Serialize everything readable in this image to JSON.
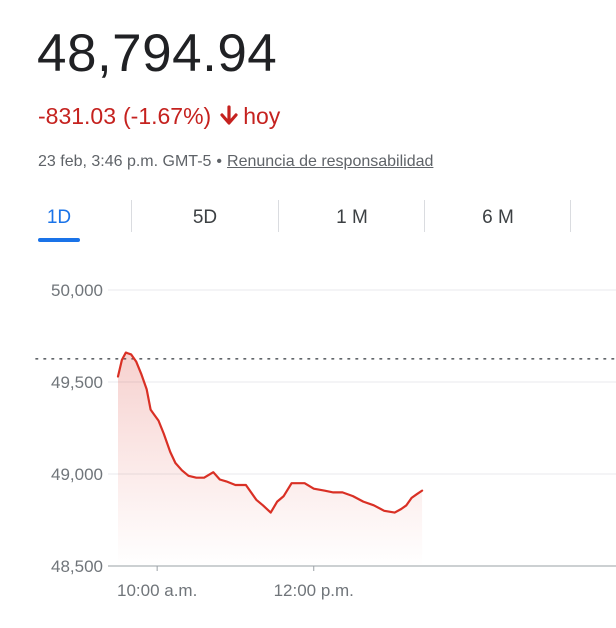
{
  "quote": {
    "price": "48,794.94",
    "change": "-831.03",
    "change_pct": "(-1.67%)",
    "period": "hoy",
    "timestamp": "23 feb, 3:46 p.m. GMT-5",
    "separator": "•",
    "disclaimer": "Renuncia de responsabilidad"
  },
  "tabs": [
    {
      "label": "1D",
      "active": true
    },
    {
      "label": "5D",
      "active": false
    },
    {
      "label": "1 M",
      "active": false
    },
    {
      "label": "6 M",
      "active": false
    }
  ],
  "colors": {
    "negative": "#c5221f",
    "accent": "#1a73e8",
    "line": "#d93025"
  },
  "icons": {
    "change_arrow": "arrow-down-icon"
  },
  "chart_data": {
    "type": "area",
    "title": "",
    "xlabel": "",
    "ylabel": "",
    "ylim": [
      48500,
      50000
    ],
    "y_ticks": [
      {
        "value": 50000,
        "label": "50,000"
      },
      {
        "value": 49500,
        "label": "49,500"
      },
      {
        "value": 49000,
        "label": "49,000"
      },
      {
        "value": 48500,
        "label": "48,500"
      }
    ],
    "x_ticks": [
      {
        "minutes": 600,
        "label": "10:00 a.m."
      },
      {
        "minutes": 720,
        "label": "12:00 p.m."
      }
    ],
    "grid": true,
    "previous_close": 49626,
    "series": [
      {
        "name": "",
        "x": [
          570,
          573,
          576,
          580,
          584,
          588,
          592,
          595,
          598,
          601,
          605,
          610,
          614,
          619,
          624,
          630,
          636,
          643,
          648,
          653,
          660,
          668,
          676,
          681,
          687,
          692,
          697,
          703,
          707,
          713,
          720,
          728,
          735,
          742,
          750,
          758,
          766,
          774,
          782,
          787,
          791,
          795,
          799,
          803
        ],
        "values": [
          49530,
          49620,
          49660,
          49650,
          49610,
          49540,
          49460,
          49350,
          49320,
          49290,
          49220,
          49120,
          49060,
          49020,
          48990,
          48980,
          48980,
          49010,
          48970,
          48960,
          48940,
          48940,
          48860,
          48830,
          48790,
          48850,
          48880,
          48950,
          48950,
          48950,
          48920,
          48910,
          48900,
          48900,
          48880,
          48850,
          48830,
          48800,
          48790,
          48810,
          48830,
          48870,
          48890,
          48910
        ]
      }
    ]
  }
}
